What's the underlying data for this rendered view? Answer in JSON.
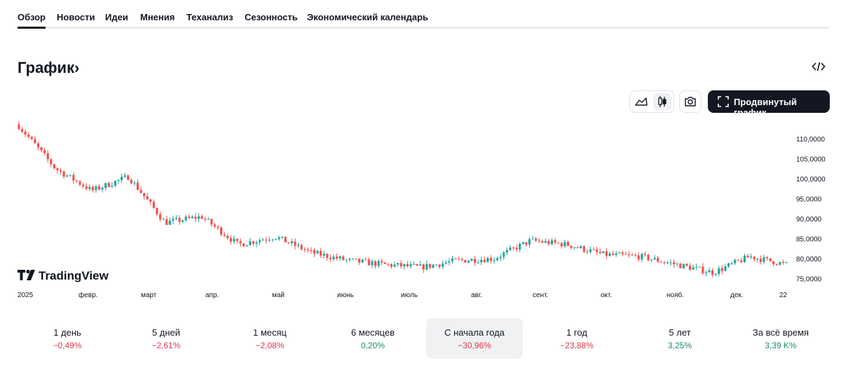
{
  "nav": {
    "tabs": [
      {
        "label": "Обзор"
      },
      {
        "label": "Новости"
      },
      {
        "label": "Идеи"
      },
      {
        "label": "Мнения"
      },
      {
        "label": "Теханализ"
      },
      {
        "label": "Сезонность"
      },
      {
        "label": "Экономический календарь"
      }
    ],
    "active": "Обзор"
  },
  "section": {
    "title": "График",
    "title_chevron": "›"
  },
  "controls": {
    "chart_type_active": "candles",
    "advanced_label": "Продвинутый график"
  },
  "chart_data": {
    "type": "candlestick",
    "y_ticks": [
      "110,0000",
      "105,0000",
      "100,0000",
      "95,0000",
      "90,0000",
      "85,0000",
      "80,0000",
      "75,0000"
    ],
    "x_ticks": [
      "2025",
      "февр.",
      "март",
      "апр.",
      "май",
      "июнь",
      "июль",
      "авг.",
      "сент.",
      "окт.",
      "нояб.",
      "дек.",
      "22"
    ],
    "ylim": [
      73.5,
      113.5
    ],
    "anchor_closes": [
      113.2,
      102.5,
      97.0,
      100.5,
      89.0,
      90.5,
      83.5,
      85.5,
      81.5,
      79.5,
      78.5,
      77.8,
      79.5,
      80.0,
      84.5,
      83.5,
      81.0,
      80.5,
      78.5,
      76.5,
      80.5,
      78.5
    ],
    "up_color": "#26a69a",
    "down_color": "#ef5350",
    "watermark": "TradingView"
  },
  "periods": [
    {
      "label": "1 день",
      "value": "−0,49%",
      "dir": "neg"
    },
    {
      "label": "5 дней",
      "value": "−2,61%",
      "dir": "neg"
    },
    {
      "label": "1 месяц",
      "value": "−2,08%",
      "dir": "neg"
    },
    {
      "label": "6 месяцев",
      "value": "0,20%",
      "dir": "pos"
    },
    {
      "label": "С начала года",
      "value": "−30,96%",
      "dir": "neg"
    },
    {
      "label": "1 год",
      "value": "−23,88%",
      "dir": "neg"
    },
    {
      "label": "5 лет",
      "value": "3,25%",
      "dir": "pos"
    },
    {
      "label": "За всё время",
      "value": "3,39 K%",
      "dir": "pos"
    }
  ]
}
